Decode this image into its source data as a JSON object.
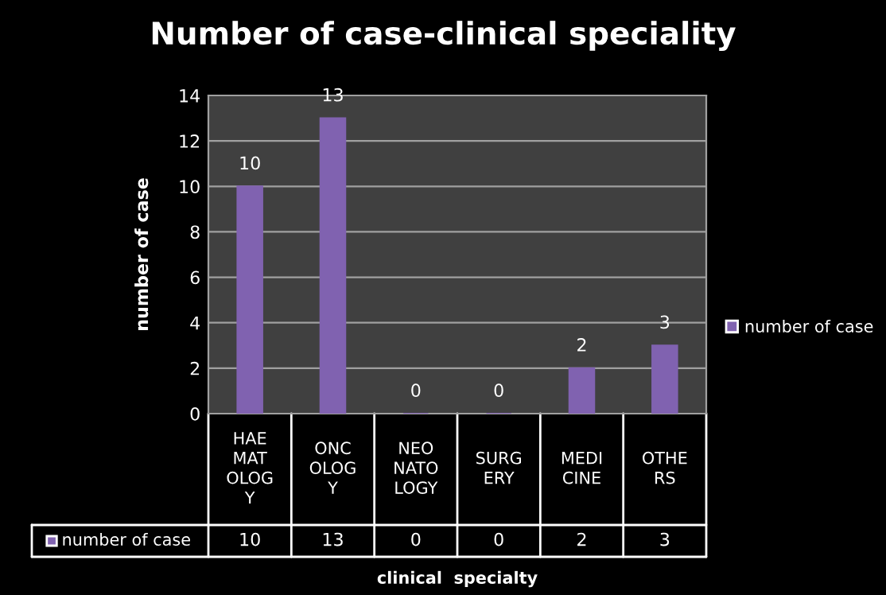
{
  "chart_data": {
    "type": "bar",
    "title": "Number of case-clinical speciality",
    "xlabel": "clinical  specialty",
    "ylabel": "number of case",
    "categories": [
      "HAE\nMAT\nOLOG\nY",
      "ONC\nOLOG\nY",
      "NEO\nNATO\nLOGY",
      "SURG\nERY",
      "MEDI\nCINE",
      "OTHE\nRS"
    ],
    "series": [
      {
        "name": "number of case",
        "color": "#8062b0",
        "values": [
          10,
          13,
          0,
          0,
          2,
          3
        ],
        "value_labels": [
          "10",
          "13",
          "0",
          "0",
          "2",
          "3"
        ]
      }
    ],
    "ylim": [
      0,
      14
    ],
    "yticks": [
      0,
      2,
      4,
      6,
      8,
      10,
      12,
      14
    ],
    "grid": "y",
    "legend": "right",
    "annotations": [
      "10",
      "13",
      "0",
      "0",
      "2",
      "3"
    ]
  }
}
